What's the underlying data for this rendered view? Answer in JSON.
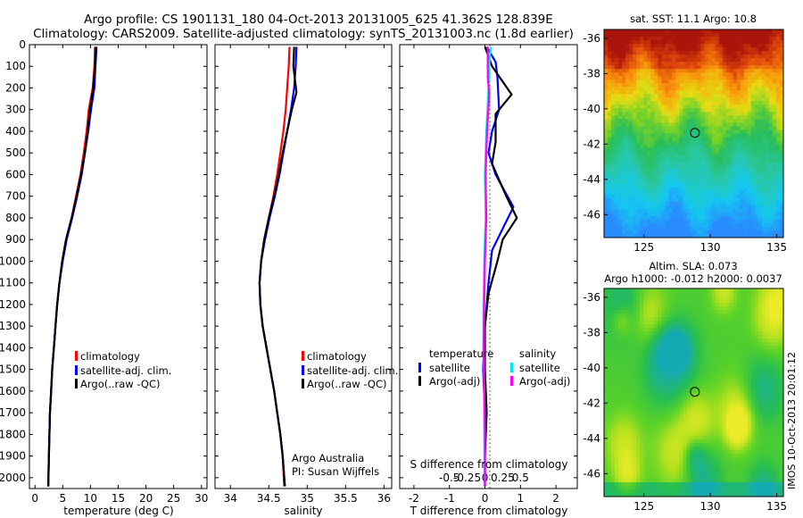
{
  "header": {
    "line1": "Argo profile: CS 1901131_180 04-Oct-2013 20131005_625 41.362S 128.839E",
    "line2": "Climatology: CARS2009. Satellite-adjusted climatology: synTS_20131003.nc (1.8d earlier)"
  },
  "side_label": "IMOS 10-Oct-2013 20:01:12",
  "colors": {
    "climatology": "#ff0000",
    "satellite": "#0000ff",
    "argo": "#000000",
    "salinity_satellite": "#00e5ee",
    "salinity_argo": "#ff00ff"
  },
  "chart_data": [
    {
      "type": "line",
      "xlabel": "temperature (deg C)",
      "xlim": [
        -1,
        31
      ],
      "xticks": [
        0,
        5,
        10,
        15,
        20,
        25,
        30
      ],
      "ylim": [
        2050,
        0
      ],
      "yticks": [
        0,
        100,
        200,
        300,
        400,
        500,
        600,
        700,
        800,
        900,
        1000,
        1100,
        1200,
        1300,
        1400,
        1500,
        1600,
        1700,
        1800,
        1900,
        2000
      ],
      "legend": [
        "climatology",
        "satellite-adj. clim.",
        "Argo(..raw -QC)"
      ],
      "legend_position": "lower-right",
      "series": [
        {
          "name": "climatology",
          "color": "#ff0000",
          "points": [
            [
              10.8,
              10
            ],
            [
              10.7,
              100
            ],
            [
              10.4,
              200
            ],
            [
              9.7,
              300
            ],
            [
              9.3,
              400
            ],
            [
              8.8,
              500
            ],
            [
              8.2,
              600
            ],
            [
              7.4,
              700
            ],
            [
              6.6,
              800
            ],
            [
              5.6,
              900
            ],
            [
              4.9,
              1000
            ],
            [
              4.4,
              1100
            ],
            [
              4.0,
              1200
            ],
            [
              3.7,
              1300
            ],
            [
              3.4,
              1400
            ],
            [
              3.1,
              1500
            ],
            [
              2.9,
              1600
            ],
            [
              2.7,
              1700
            ],
            [
              2.6,
              1800
            ],
            [
              2.5,
              1900
            ],
            [
              2.4,
              2040
            ]
          ]
        },
        {
          "name": "satellite-adj. clim.",
          "color": "#0000ff",
          "points": [
            [
              11.1,
              10
            ],
            [
              10.9,
              100
            ],
            [
              10.7,
              200
            ],
            [
              10.1,
              300
            ],
            [
              9.6,
              400
            ],
            [
              9.0,
              500
            ],
            [
              8.4,
              600
            ],
            [
              7.6,
              700
            ],
            [
              6.7,
              800
            ],
            [
              5.7,
              900
            ],
            [
              5.0,
              1000
            ],
            [
              4.4,
              1100
            ],
            [
              4.0,
              1200
            ],
            [
              3.7,
              1300
            ],
            [
              3.4,
              1400
            ],
            [
              3.1,
              1500
            ],
            [
              2.9,
              1600
            ],
            [
              2.7,
              1700
            ],
            [
              2.6,
              1800
            ],
            [
              2.5,
              1900
            ],
            [
              2.4,
              2040
            ]
          ]
        },
        {
          "name": "Argo(..raw -QC)",
          "color": "#000000",
          "points": [
            [
              11.0,
              10
            ],
            [
              10.8,
              100
            ],
            [
              10.5,
              200
            ],
            [
              9.9,
              300
            ],
            [
              9.5,
              400
            ],
            [
              9.0,
              500
            ],
            [
              8.3,
              600
            ],
            [
              7.5,
              700
            ],
            [
              6.6,
              800
            ],
            [
              5.6,
              900
            ],
            [
              4.9,
              1000
            ],
            [
              4.4,
              1100
            ],
            [
              4.0,
              1200
            ],
            [
              3.7,
              1300
            ],
            [
              3.4,
              1400
            ],
            [
              3.1,
              1500
            ],
            [
              2.9,
              1600
            ],
            [
              2.7,
              1700
            ],
            [
              2.6,
              1800
            ],
            [
              2.5,
              1900
            ],
            [
              2.4,
              2040
            ]
          ]
        }
      ]
    },
    {
      "type": "line",
      "xlabel": "salinity",
      "xlim": [
        33.8,
        36.1
      ],
      "xticks": [
        34,
        34.5,
        35,
        35.5,
        36
      ],
      "xticklabels": [
        "34",
        "34.5",
        "35",
        "35.5",
        "36"
      ],
      "ylim": [
        2050,
        0
      ],
      "legend": [
        "climatology",
        "satellite-adj. clim.",
        "Argo(..raw -QC)"
      ],
      "legend_position": "lower-right",
      "annotation": [
        "Argo Australia",
        "PI: Susan Wijffels"
      ],
      "series": [
        {
          "name": "climatology",
          "color": "#ff0000",
          "points": [
            [
              34.77,
              10
            ],
            [
              34.76,
              100
            ],
            [
              34.74,
              200
            ],
            [
              34.72,
              300
            ],
            [
              34.69,
              400
            ],
            [
              34.65,
              500
            ],
            [
              34.61,
              600
            ],
            [
              34.56,
              700
            ],
            [
              34.5,
              800
            ],
            [
              34.44,
              900
            ],
            [
              34.4,
              1000
            ],
            [
              34.38,
              1100
            ],
            [
              34.39,
              1200
            ],
            [
              34.42,
              1300
            ],
            [
              34.47,
              1400
            ],
            [
              34.52,
              1500
            ],
            [
              34.57,
              1600
            ],
            [
              34.61,
              1700
            ],
            [
              34.65,
              1800
            ],
            [
              34.68,
              1900
            ],
            [
              34.7,
              2040
            ]
          ]
        },
        {
          "name": "satellite-adj. clim.",
          "color": "#0000ff",
          "points": [
            [
              34.86,
              10
            ],
            [
              34.85,
              100
            ],
            [
              34.83,
              200
            ],
            [
              34.79,
              300
            ],
            [
              34.74,
              400
            ],
            [
              34.69,
              500
            ],
            [
              34.64,
              600
            ],
            [
              34.58,
              700
            ],
            [
              34.51,
              800
            ],
            [
              34.45,
              900
            ],
            [
              34.4,
              1000
            ],
            [
              34.38,
              1100
            ],
            [
              34.39,
              1200
            ],
            [
              34.42,
              1300
            ],
            [
              34.47,
              1400
            ],
            [
              34.52,
              1500
            ],
            [
              34.57,
              1600
            ],
            [
              34.61,
              1700
            ],
            [
              34.65,
              1800
            ],
            [
              34.68,
              1900
            ],
            [
              34.71,
              2040
            ]
          ]
        },
        {
          "name": "Argo(..raw -QC)",
          "color": "#000000",
          "points": [
            [
              34.83,
              10
            ],
            [
              34.82,
              100
            ],
            [
              34.86,
              220
            ],
            [
              34.8,
              300
            ],
            [
              34.74,
              400
            ],
            [
              34.68,
              500
            ],
            [
              34.63,
              600
            ],
            [
              34.57,
              700
            ],
            [
              34.5,
              800
            ],
            [
              34.44,
              900
            ],
            [
              34.4,
              1000
            ],
            [
              34.38,
              1100
            ],
            [
              34.39,
              1200
            ],
            [
              34.42,
              1300
            ],
            [
              34.47,
              1400
            ],
            [
              34.52,
              1500
            ],
            [
              34.57,
              1600
            ],
            [
              34.61,
              1700
            ],
            [
              34.65,
              1800
            ],
            [
              34.68,
              1900
            ],
            [
              34.71,
              2040
            ]
          ]
        }
      ]
    },
    {
      "type": "line",
      "xlabel": "T difference from climatology",
      "top_xlabel": "S difference from climatology",
      "xlim": [
        -2.4,
        2.6
      ],
      "xticks": [
        -2,
        -1,
        0,
        1,
        2
      ],
      "top_xticks": [
        -0.5,
        -0.25,
        0,
        0.25,
        0.5
      ],
      "top_xticklabels": [
        "-0.5",
        "-0.25",
        "0",
        "0.25",
        "0.5"
      ],
      "ylim": [
        2050,
        0
      ],
      "legend_temperature": {
        "heading": "temperature",
        "entries": [
          "satellite",
          "Argo(-adj)"
        ]
      },
      "legend_salinity": {
        "heading": "salinity",
        "entries": [
          "satellite",
          "Argo(-adj)"
        ]
      },
      "series": [
        {
          "name": "satellite",
          "group": "temperature",
          "color": "#0000ff",
          "points": [
            [
              0.05,
              10
            ],
            [
              0.3,
              80
            ],
            [
              0.35,
              150
            ],
            [
              0.4,
              300
            ],
            [
              0.2,
              400
            ],
            [
              0.1,
              500
            ],
            [
              0.3,
              600
            ],
            [
              0.8,
              750
            ],
            [
              0.5,
              850
            ],
            [
              0.2,
              950
            ],
            [
              0.1,
              1100
            ],
            [
              0.0,
              1300
            ],
            [
              -0.05,
              1500
            ],
            [
              0.0,
              1700
            ],
            [
              0.0,
              1900
            ],
            [
              0.0,
              2040
            ]
          ]
        },
        {
          "name": "Argo(-adj)",
          "group": "temperature",
          "color": "#000000",
          "points": [
            [
              0.0,
              10
            ],
            [
              0.2,
              100
            ],
            [
              0.75,
              230
            ],
            [
              0.3,
              320
            ],
            [
              0.3,
              450
            ],
            [
              0.2,
              550
            ],
            [
              0.6,
              700
            ],
            [
              0.9,
              800
            ],
            [
              0.5,
              900
            ],
            [
              0.35,
              1000
            ],
            [
              0.1,
              1150
            ],
            [
              0.0,
              1300
            ],
            [
              0.0,
              1500
            ],
            [
              0.05,
              1700
            ],
            [
              0.0,
              1900
            ],
            [
              0.0,
              2040
            ]
          ]
        },
        {
          "name": "satellite",
          "group": "salinity",
          "color": "#00e5ee",
          "points": [
            [
              0.08,
              10
            ],
            [
              0.06,
              100
            ],
            [
              0.05,
              200
            ],
            [
              0.02,
              400
            ],
            [
              0.0,
              600
            ],
            [
              0.01,
              800
            ],
            [
              -0.01,
              1000
            ],
            [
              -0.02,
              1200
            ],
            [
              -0.02,
              1400
            ],
            [
              -0.01,
              1600
            ],
            [
              -0.01,
              1800
            ],
            [
              0.0,
              2040
            ]
          ]
        },
        {
          "name": "Argo(-adj)",
          "group": "salinity",
          "color": "#ff00ff",
          "points": [
            [
              0.04,
              10
            ],
            [
              0.04,
              150
            ],
            [
              0.06,
              230
            ],
            [
              0.03,
              400
            ],
            [
              0.01,
              600
            ],
            [
              0.02,
              800
            ],
            [
              0.0,
              1000
            ],
            [
              -0.01,
              1200
            ],
            [
              -0.02,
              1400
            ],
            [
              -0.01,
              1600
            ],
            [
              0.0,
              1800
            ],
            [
              0.0,
              2040
            ]
          ]
        }
      ]
    },
    {
      "type": "heatmap",
      "title": "sat. SST: 11.1  Argo: 10.8",
      "xlim": [
        122,
        135.5
      ],
      "ylim": [
        -47.3,
        -35.5
      ],
      "xticks": [
        125,
        130,
        135
      ],
      "yticks": [
        -36,
        -38,
        -40,
        -42,
        -44,
        -46
      ],
      "marker": [
        128.839,
        -41.362
      ]
    },
    {
      "type": "heatmap",
      "title": "Altim. SLA: 0.073",
      "subtitle": "Argo h1000: -0.012 h2000: 0.0037",
      "xlim": [
        122,
        135.5
      ],
      "ylim": [
        -47.3,
        -35.5
      ],
      "xticks": [
        125,
        130,
        135
      ],
      "yticks": [
        -36,
        -38,
        -40,
        -42,
        -44,
        -46
      ],
      "marker": [
        128.839,
        -41.362
      ]
    }
  ]
}
